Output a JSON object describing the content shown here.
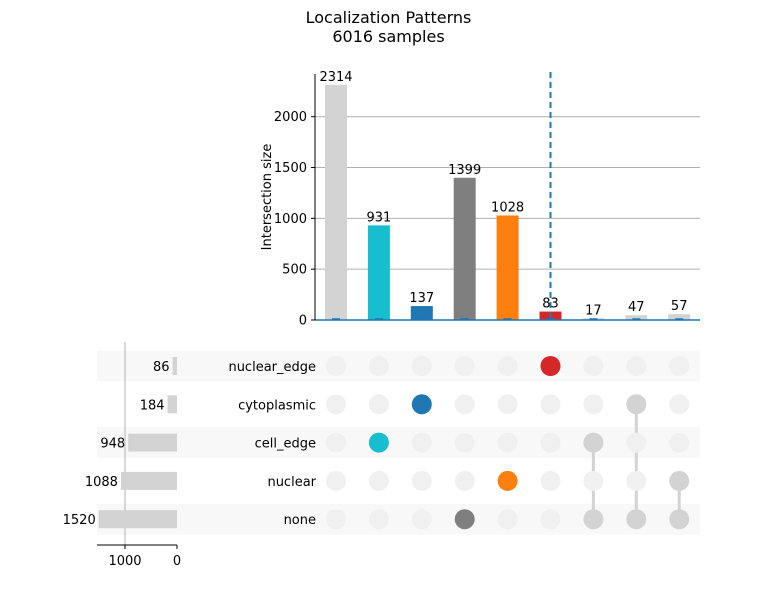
{
  "chart_data": {
    "type": "bar",
    "title": "Localization Patterns",
    "subtitle": "6016 samples",
    "intersections": {
      "ylabel": "Intersection size",
      "ylim": [
        0,
        2420
      ],
      "yticks": [
        0,
        500,
        1000,
        1500,
        2000
      ],
      "grid": true,
      "values": [
        2314,
        931,
        137,
        1399,
        1028,
        83,
        17,
        47,
        57
      ],
      "colors": [
        "#d3d3d3",
        "#17becf",
        "#1f77b4",
        "#7f7f7f",
        "#ff7f0e",
        "#d62728",
        "#d3d3d3",
        "#d3d3d3",
        "#d3d3d3"
      ],
      "members": [
        [],
        [
          "cell_edge"
        ],
        [
          "cytoplasmic"
        ],
        [
          "none"
        ],
        [
          "nuclear"
        ],
        [
          "nuclear_edge"
        ],
        [
          "cell_edge",
          "none"
        ],
        [
          "cytoplasmic",
          "none"
        ],
        [
          "nuclear",
          "none"
        ]
      ]
    },
    "sets": {
      "names": [
        "nuclear_edge",
        "cytoplasmic",
        "cell_edge",
        "nuclear",
        "none"
      ],
      "sizes": [
        86,
        184,
        948,
        1088,
        1520
      ],
      "xticks": [
        1000,
        0
      ],
      "xlim": [
        1600,
        0
      ]
    },
    "highlight": {
      "type": "vertical dashed line",
      "position": "at the nuclear_edge intersection",
      "color": "#1f77b4"
    },
    "inactive_dot_color": "#f0f0f0",
    "active_dot_color": "#d3d3d3",
    "stripe_color": "#f8f8f8"
  }
}
